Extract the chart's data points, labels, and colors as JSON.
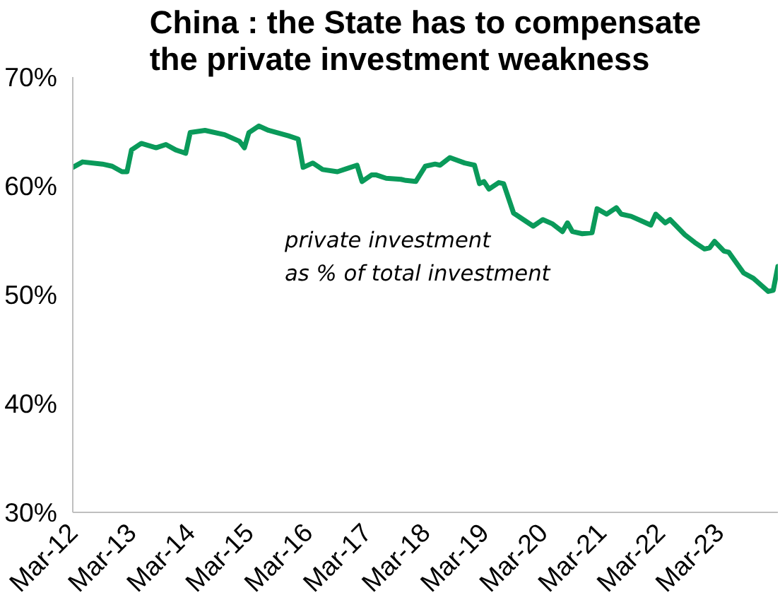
{
  "chart_data": {
    "type": "line",
    "title": "China : the State has to compensate\nthe private investment weakness",
    "annotations": [
      "private investment\nas % of total investment"
    ],
    "x": [
      "2012-03",
      "2012-05",
      "2012-09",
      "2012-11",
      "2013-01",
      "2013-02",
      "2013-03",
      "2013-05",
      "2013-08",
      "2013-10",
      "2013-12",
      "2014-02",
      "2014-03",
      "2014-06",
      "2014-10",
      "2015-01",
      "2015-02",
      "2015-03",
      "2015-05",
      "2015-07",
      "2015-11",
      "2016-01",
      "2016-02",
      "2016-04",
      "2016-06",
      "2016-09",
      "2016-11",
      "2017-01",
      "2017-02",
      "2017-04",
      "2017-05",
      "2017-07",
      "2017-10",
      "2017-11",
      "2018-01",
      "2018-03",
      "2018-05",
      "2018-06",
      "2018-08",
      "2018-11",
      "2019-01",
      "2019-02",
      "2019-03",
      "2019-04",
      "2019-06",
      "2019-07",
      "2019-09",
      "2019-11",
      "2020-01",
      "2020-03",
      "2020-05",
      "2020-07",
      "2020-08",
      "2020-09",
      "2020-11",
      "2021-01",
      "2021-02",
      "2021-04",
      "2021-06",
      "2021-07",
      "2021-09",
      "2021-11",
      "2022-01",
      "2022-02",
      "2022-04",
      "2022-05",
      "2022-08",
      "2022-10",
      "2022-12",
      "2023-01",
      "2023-02",
      "2023-04",
      "2023-05",
      "2023-08",
      "2023-10",
      "2023-11",
      "2024-01",
      "2024-02",
      "2024-03"
    ],
    "series": [
      {
        "color": "#0a9a5a",
        "values": [
          61.7,
          62.2,
          62.0,
          61.8,
          61.3,
          61.3,
          63.3,
          63.9,
          63.5,
          63.8,
          63.3,
          63.0,
          64.9,
          65.1,
          64.7,
          64.1,
          63.5,
          64.9,
          65.5,
          65.1,
          64.6,
          64.3,
          61.7,
          62.1,
          61.5,
          61.3,
          61.6,
          61.9,
          60.4,
          61.0,
          61.0,
          60.7,
          60.6,
          60.5,
          60.4,
          61.8,
          62.0,
          61.9,
          62.6,
          62.1,
          61.9,
          60.2,
          60.4,
          59.7,
          60.3,
          60.2,
          57.5,
          56.9,
          56.3,
          56.9,
          56.5,
          55.8,
          56.6,
          55.8,
          55.6,
          55.7,
          57.9,
          57.4,
          58.0,
          57.4,
          57.2,
          56.8,
          56.4,
          57.4,
          56.6,
          56.9,
          55.5,
          54.8,
          54.2,
          54.3,
          54.9,
          54.0,
          53.9,
          52.0,
          51.5,
          51.1,
          50.3,
          50.4,
          52.6
        ]
      }
    ],
    "xlim": [
      "2012-03",
      "2024-03"
    ],
    "xticks": [
      {
        "value": "2012-03",
        "label": "Mar-12"
      },
      {
        "value": "2013-03",
        "label": "Mar-13"
      },
      {
        "value": "2014-03",
        "label": "Mar-14"
      },
      {
        "value": "2015-03",
        "label": "Mar-15"
      },
      {
        "value": "2016-03",
        "label": "Mar-16"
      },
      {
        "value": "2017-03",
        "label": "Mar-17"
      },
      {
        "value": "2018-03",
        "label": "Mar-18"
      },
      {
        "value": "2019-03",
        "label": "Mar-19"
      },
      {
        "value": "2020-03",
        "label": "Mar-20"
      },
      {
        "value": "2021-03",
        "label": "Mar-21"
      },
      {
        "value": "2022-03",
        "label": "Mar-22"
      },
      {
        "value": "2023-03",
        "label": "Mar-23"
      }
    ],
    "ylim": [
      30,
      70
    ],
    "yticks": [
      {
        "value": 30,
        "label": "30%"
      },
      {
        "value": 40,
        "label": "40%"
      },
      {
        "value": 50,
        "label": "50%"
      },
      {
        "value": 60,
        "label": "60%"
      },
      {
        "value": 70,
        "label": "70%"
      }
    ],
    "grid": false,
    "marker": "none",
    "line_style": "solid"
  }
}
